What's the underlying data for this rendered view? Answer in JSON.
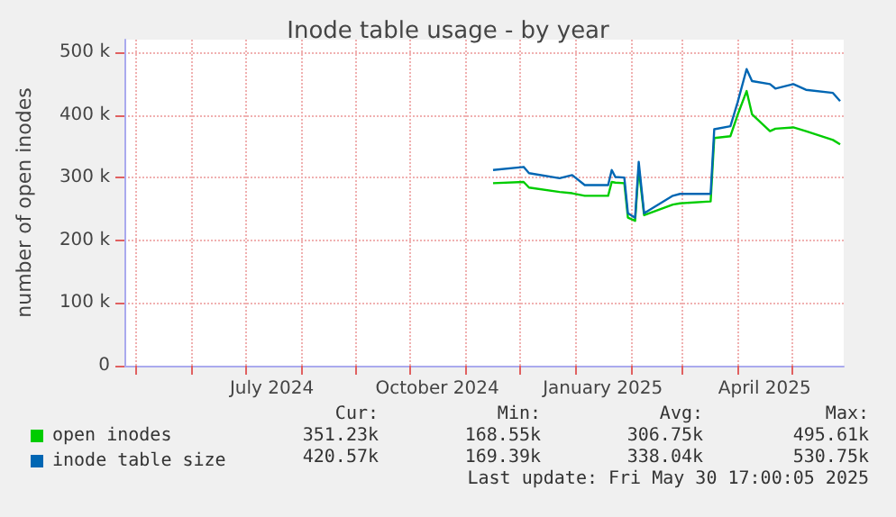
{
  "chart_data": {
    "type": "line",
    "title": "Inode table usage - by year",
    "ylabel": "number of open inodes",
    "xlim": [
      "2024-04-25",
      "2025-05-30"
    ],
    "xticks": [
      {
        "value": "2024-05-01",
        "label": null
      },
      {
        "value": "2024-06-01",
        "label": null
      },
      {
        "value": "2024-07-01",
        "label": null
      },
      {
        "value": "2024-07-16",
        "label": "July 2024"
      },
      {
        "value": "2024-08-01",
        "label": null
      },
      {
        "value": "2024-09-01",
        "label": null
      },
      {
        "value": "2024-10-01",
        "label": null
      },
      {
        "value": "2024-10-16",
        "label": "October 2024"
      },
      {
        "value": "2024-11-01",
        "label": null
      },
      {
        "value": "2024-12-01",
        "label": null
      },
      {
        "value": "2025-01-01",
        "label": null
      },
      {
        "value": "2025-01-16",
        "label": "January 2025"
      },
      {
        "value": "2025-02-01",
        "label": null
      },
      {
        "value": "2025-03-01",
        "label": null
      },
      {
        "value": "2025-04-01",
        "label": null
      },
      {
        "value": "2025-04-16",
        "label": "April 2025"
      },
      {
        "value": "2025-05-01",
        "label": null
      }
    ],
    "ylim": [
      0,
      520000
    ],
    "yticks": [
      0,
      {
        "value": 100000,
        "label": "100 k"
      },
      {
        "value": 200000,
        "label": "200 k"
      },
      {
        "value": 300000,
        "label": "300 k"
      },
      {
        "value": 400000,
        "label": "400 k"
      },
      {
        "value": 500000,
        "label": "500 k"
      }
    ],
    "grid": true,
    "legend": "bottom left",
    "x": [
      "2024-11-16",
      "2024-12-03",
      "2024-12-06",
      "2024-12-23",
      "2024-12-30",
      "2025-01-06",
      "2025-01-19",
      "2025-01-21",
      "2025-01-23",
      "2025-01-28",
      "2025-01-30",
      "2025-02-03",
      "2025-02-05",
      "2025-02-08",
      "2025-02-24",
      "2025-02-28",
      "2025-03-17",
      "2025-03-19",
      "2025-03-28",
      "2025-04-01",
      "2025-04-06",
      "2025-04-09",
      "2025-04-19",
      "2025-04-22",
      "2025-05-02",
      "2025-05-09",
      "2025-05-24",
      "2025-05-28"
    ],
    "series": [
      {
        "name": "open inodes",
        "color": "#00cc00",
        "values": [
          291000,
          293000,
          284000,
          277000,
          275000,
          271000,
          271000,
          293000,
          292000,
          291000,
          236000,
          231000,
          315000,
          240000,
          257000,
          259000,
          262000,
          363000,
          366000,
          400000,
          438000,
          401000,
          374000,
          378000,
          380000,
          374000,
          360000,
          353000
        ]
      },
      {
        "name": "inode table size",
        "color": "#0066b3",
        "values": [
          312000,
          317000,
          307000,
          299000,
          304000,
          288000,
          288000,
          312000,
          301000,
          300000,
          243000,
          236000,
          325000,
          243000,
          271000,
          274000,
          274000,
          377000,
          382000,
          420000,
          473000,
          454000,
          449000,
          442000,
          449000,
          440000,
          435000,
          422000
        ]
      }
    ],
    "annotations": [
      "Cur:",
      "Min:",
      "Avg:",
      "Max:",
      "351.23k",
      "168.55k",
      "306.75k",
      "495.61k",
      "420.57k",
      "169.39k",
      "338.04k",
      "530.75k",
      "Last update: Fri May 30 17:00:05 2025"
    ]
  }
}
